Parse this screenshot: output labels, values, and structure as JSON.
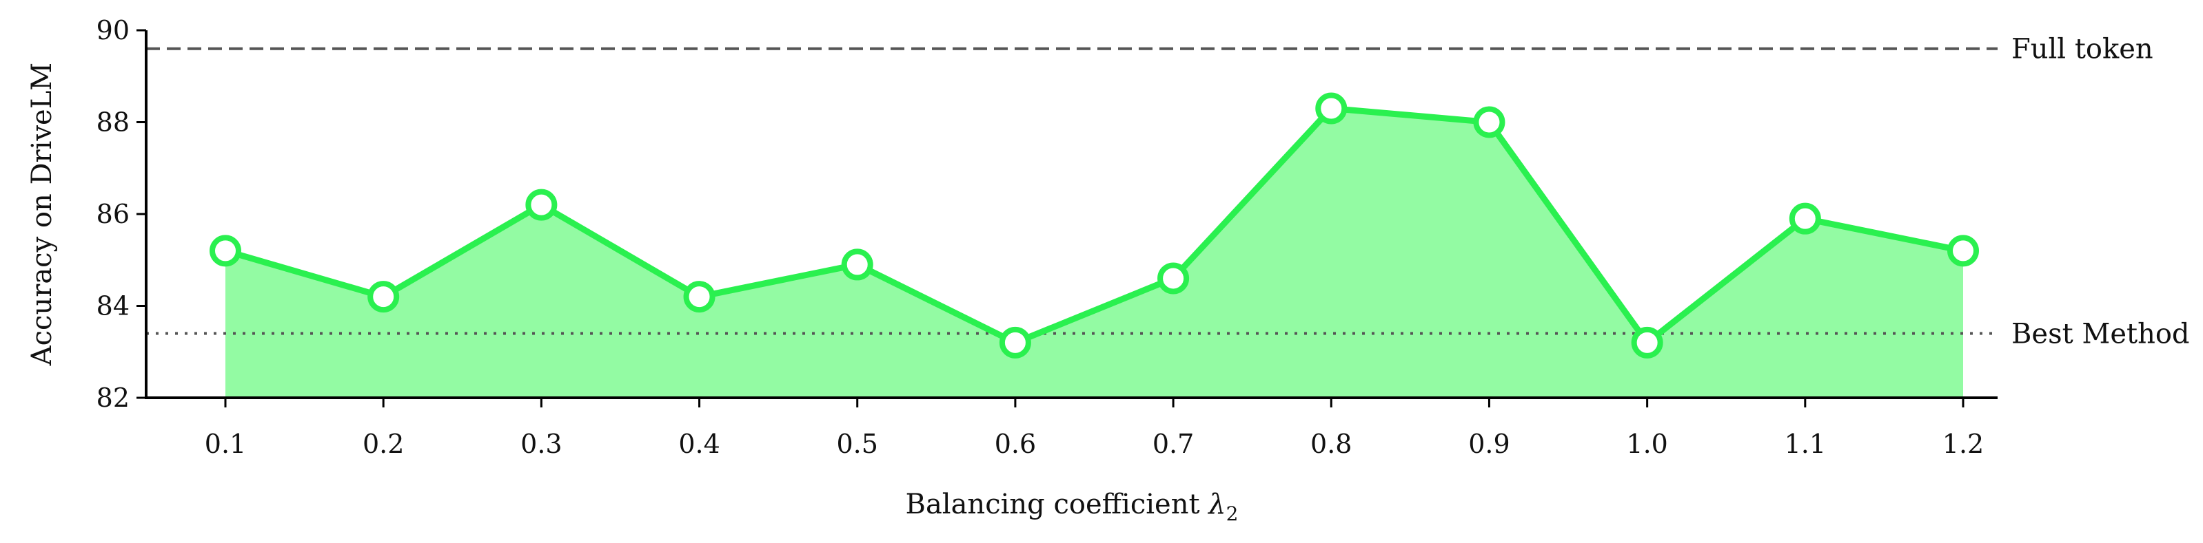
{
  "chart_data": {
    "type": "line",
    "x": [
      "0.1",
      "0.2",
      "0.3",
      "0.4",
      "0.5",
      "0.6",
      "0.7",
      "0.8",
      "0.9",
      "1.0",
      "1.1",
      "1.2"
    ],
    "series": [
      {
        "values": [
          85.2,
          84.2,
          86.2,
          84.2,
          84.9,
          83.2,
          84.6,
          88.3,
          88.0,
          83.2,
          85.9,
          85.2
        ],
        "color": "#2af04f",
        "fill": "#93fba3"
      }
    ],
    "reference_lines": [
      {
        "label": "Full token",
        "value": 89.6,
        "style": "dashed",
        "color": "#555555"
      },
      {
        "label": "Best Method",
        "value": 83.4,
        "style": "dotted",
        "color": "#555555"
      }
    ],
    "xlabel_text": "Balancing coefficient ",
    "xlabel_symbol": "λ",
    "xlabel_subscript": "2",
    "ylabel": "Accuracy on DriveLM",
    "ylim": [
      82,
      90
    ],
    "yticks": [
      "82",
      "84",
      "86",
      "88",
      "90"
    ],
    "grid": false,
    "legend": "none"
  }
}
